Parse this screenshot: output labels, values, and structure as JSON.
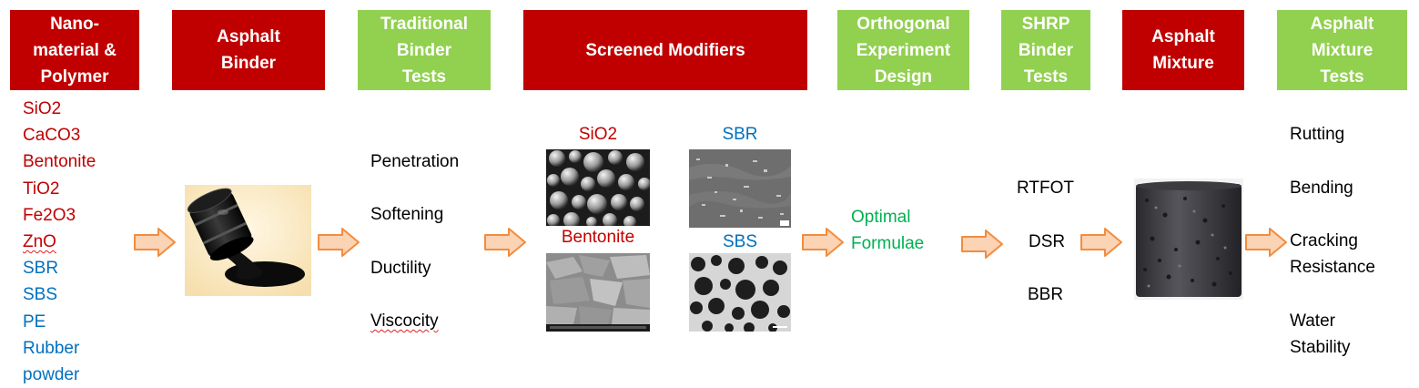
{
  "headers": [
    {
      "text": "Nano-\nmaterial &\nPolymer",
      "style": "red"
    },
    {
      "text": "Asphalt\nBinder",
      "style": "red"
    },
    {
      "text": "Traditional\nBinder\nTests",
      "style": "green"
    },
    {
      "text": "Screened Modifiers",
      "style": "red"
    },
    {
      "text": "Orthogonal\nExperiment\nDesign",
      "style": "green"
    },
    {
      "text": "SHRP\nBinder\nTests",
      "style": "green"
    },
    {
      "text": "Asphalt\nMixture",
      "style": "red"
    },
    {
      "text": "Asphalt\nMixture\nTests",
      "style": "green"
    }
  ],
  "materials": {
    "nano": [
      "SiO2",
      "CaCO3",
      "Bentonite",
      "TiO2",
      "Fe2O3",
      "ZnO"
    ],
    "polymer": [
      "SBR",
      "SBS",
      "PE",
      "Rubber",
      "powder"
    ]
  },
  "traditional_tests": [
    "Penetration",
    "Softening",
    "Ductility",
    "Viscocity"
  ],
  "screened": {
    "sio2": "SiO2",
    "bentonite": "Bentonite",
    "sbr": "SBR",
    "sbs": "SBS"
  },
  "optimal": "Optimal\nFormulae",
  "shrp_tests": [
    "RTFOT",
    "DSR",
    "BBR"
  ],
  "mixture_tests": [
    "Rutting",
    "Bending",
    "Cracking\nResistance",
    "Water\nStability"
  ],
  "colors": {
    "header_red": "#c00000",
    "header_green": "#92d050",
    "nano_text": "#c00000",
    "polymer_text": "#0070c0",
    "optimal_text": "#00b050",
    "arrow_fill": "#fbd3b5",
    "arrow_stroke": "#f28c3e"
  },
  "icons": {
    "barrel": "asphalt-barrel-icon",
    "arrow": "orange-right-arrow-icon"
  }
}
